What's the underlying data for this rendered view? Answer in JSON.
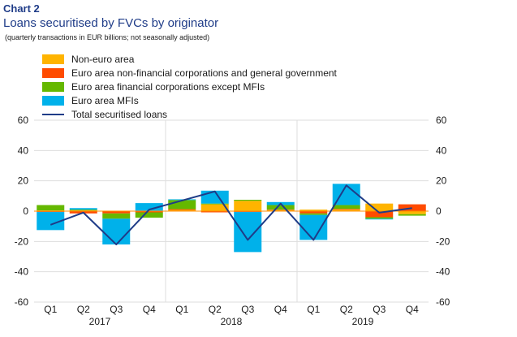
{
  "header": {
    "chart_label": "Chart 2",
    "title": "Loans securitised by FVCs by originator",
    "subtitle": "(quarterly transactions in EUR billions; not seasonally adjusted)"
  },
  "colors": {
    "non_euro": "#ffb400",
    "nfc_gg": "#ff4b00",
    "fc_ex_mfi": "#65b800",
    "mfi": "#00b1ea",
    "total": "#1f3c88"
  },
  "chart_data": {
    "type": "bar",
    "stacked": true,
    "categories": [
      "Q1",
      "Q2",
      "Q3",
      "Q4",
      "Q1",
      "Q2",
      "Q3",
      "Q4",
      "Q1",
      "Q2",
      "Q3",
      "Q4"
    ],
    "years": [
      "2017",
      "2018",
      "2019"
    ],
    "ylim": [
      -60,
      60
    ],
    "yticks": [
      60,
      40,
      20,
      0,
      -20,
      -40,
      -60
    ],
    "grid": true,
    "legend_position": "top-left",
    "series": [
      {
        "name": "Non-euro area",
        "color_key": "non_euro",
        "values": [
          0.5,
          0.5,
          0.3,
          0.3,
          0.8,
          4.5,
          6.8,
          0.7,
          1.0,
          1.0,
          5.0,
          -2.0
        ]
      },
      {
        "name": "Euro area non-financial corporations and general government",
        "color_key": "nfc_gg",
        "values": [
          -0.5,
          -1.5,
          -1.5,
          -0.8,
          0.5,
          -0.8,
          -0.5,
          0.3,
          -1.5,
          0.5,
          -4.0,
          4.5
        ]
      },
      {
        "name": "Euro area financial corporations except MFIs",
        "color_key": "fc_ex_mfi",
        "values": [
          3.5,
          0.5,
          -3.5,
          -3.5,
          6.0,
          0.5,
          0.7,
          3.0,
          -1.0,
          2.5,
          -1.0,
          -1.0
        ]
      },
      {
        "name": "Euro area MFIs",
        "color_key": "mfi",
        "values": [
          -12.0,
          1.0,
          -17.0,
          5.0,
          0.5,
          8.5,
          -26.5,
          2.0,
          -16.5,
          14.0,
          -0.5,
          0.0
        ]
      }
    ],
    "line": {
      "name": "Total securitised loans",
      "color_key": "total",
      "values": [
        -9,
        -1,
        -22,
        1,
        7,
        13,
        -19,
        5,
        -19,
        17,
        -1,
        2
      ]
    }
  }
}
